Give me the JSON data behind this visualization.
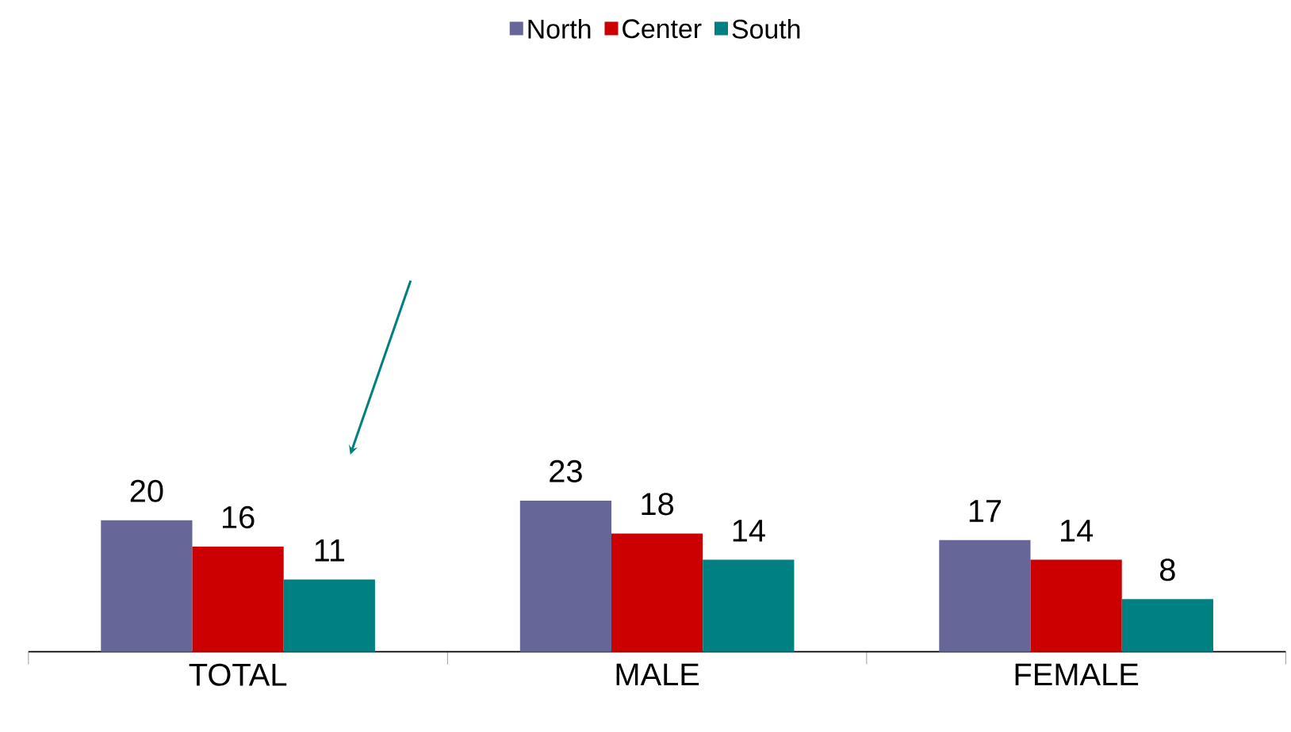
{
  "chart_data": {
    "type": "bar",
    "categories": [
      "TOTAL",
      "MALE",
      "FEMALE"
    ],
    "series": [
      {
        "name": "North",
        "color": "#666699",
        "values": [
          20,
          23,
          17
        ]
      },
      {
        "name": "Center",
        "color": "#cc0000",
        "values": [
          16,
          18,
          14
        ]
      },
      {
        "name": "South",
        "color": "#008080",
        "values": [
          11,
          14,
          8
        ]
      }
    ],
    "data_labels": true,
    "legend": "top"
  }
}
